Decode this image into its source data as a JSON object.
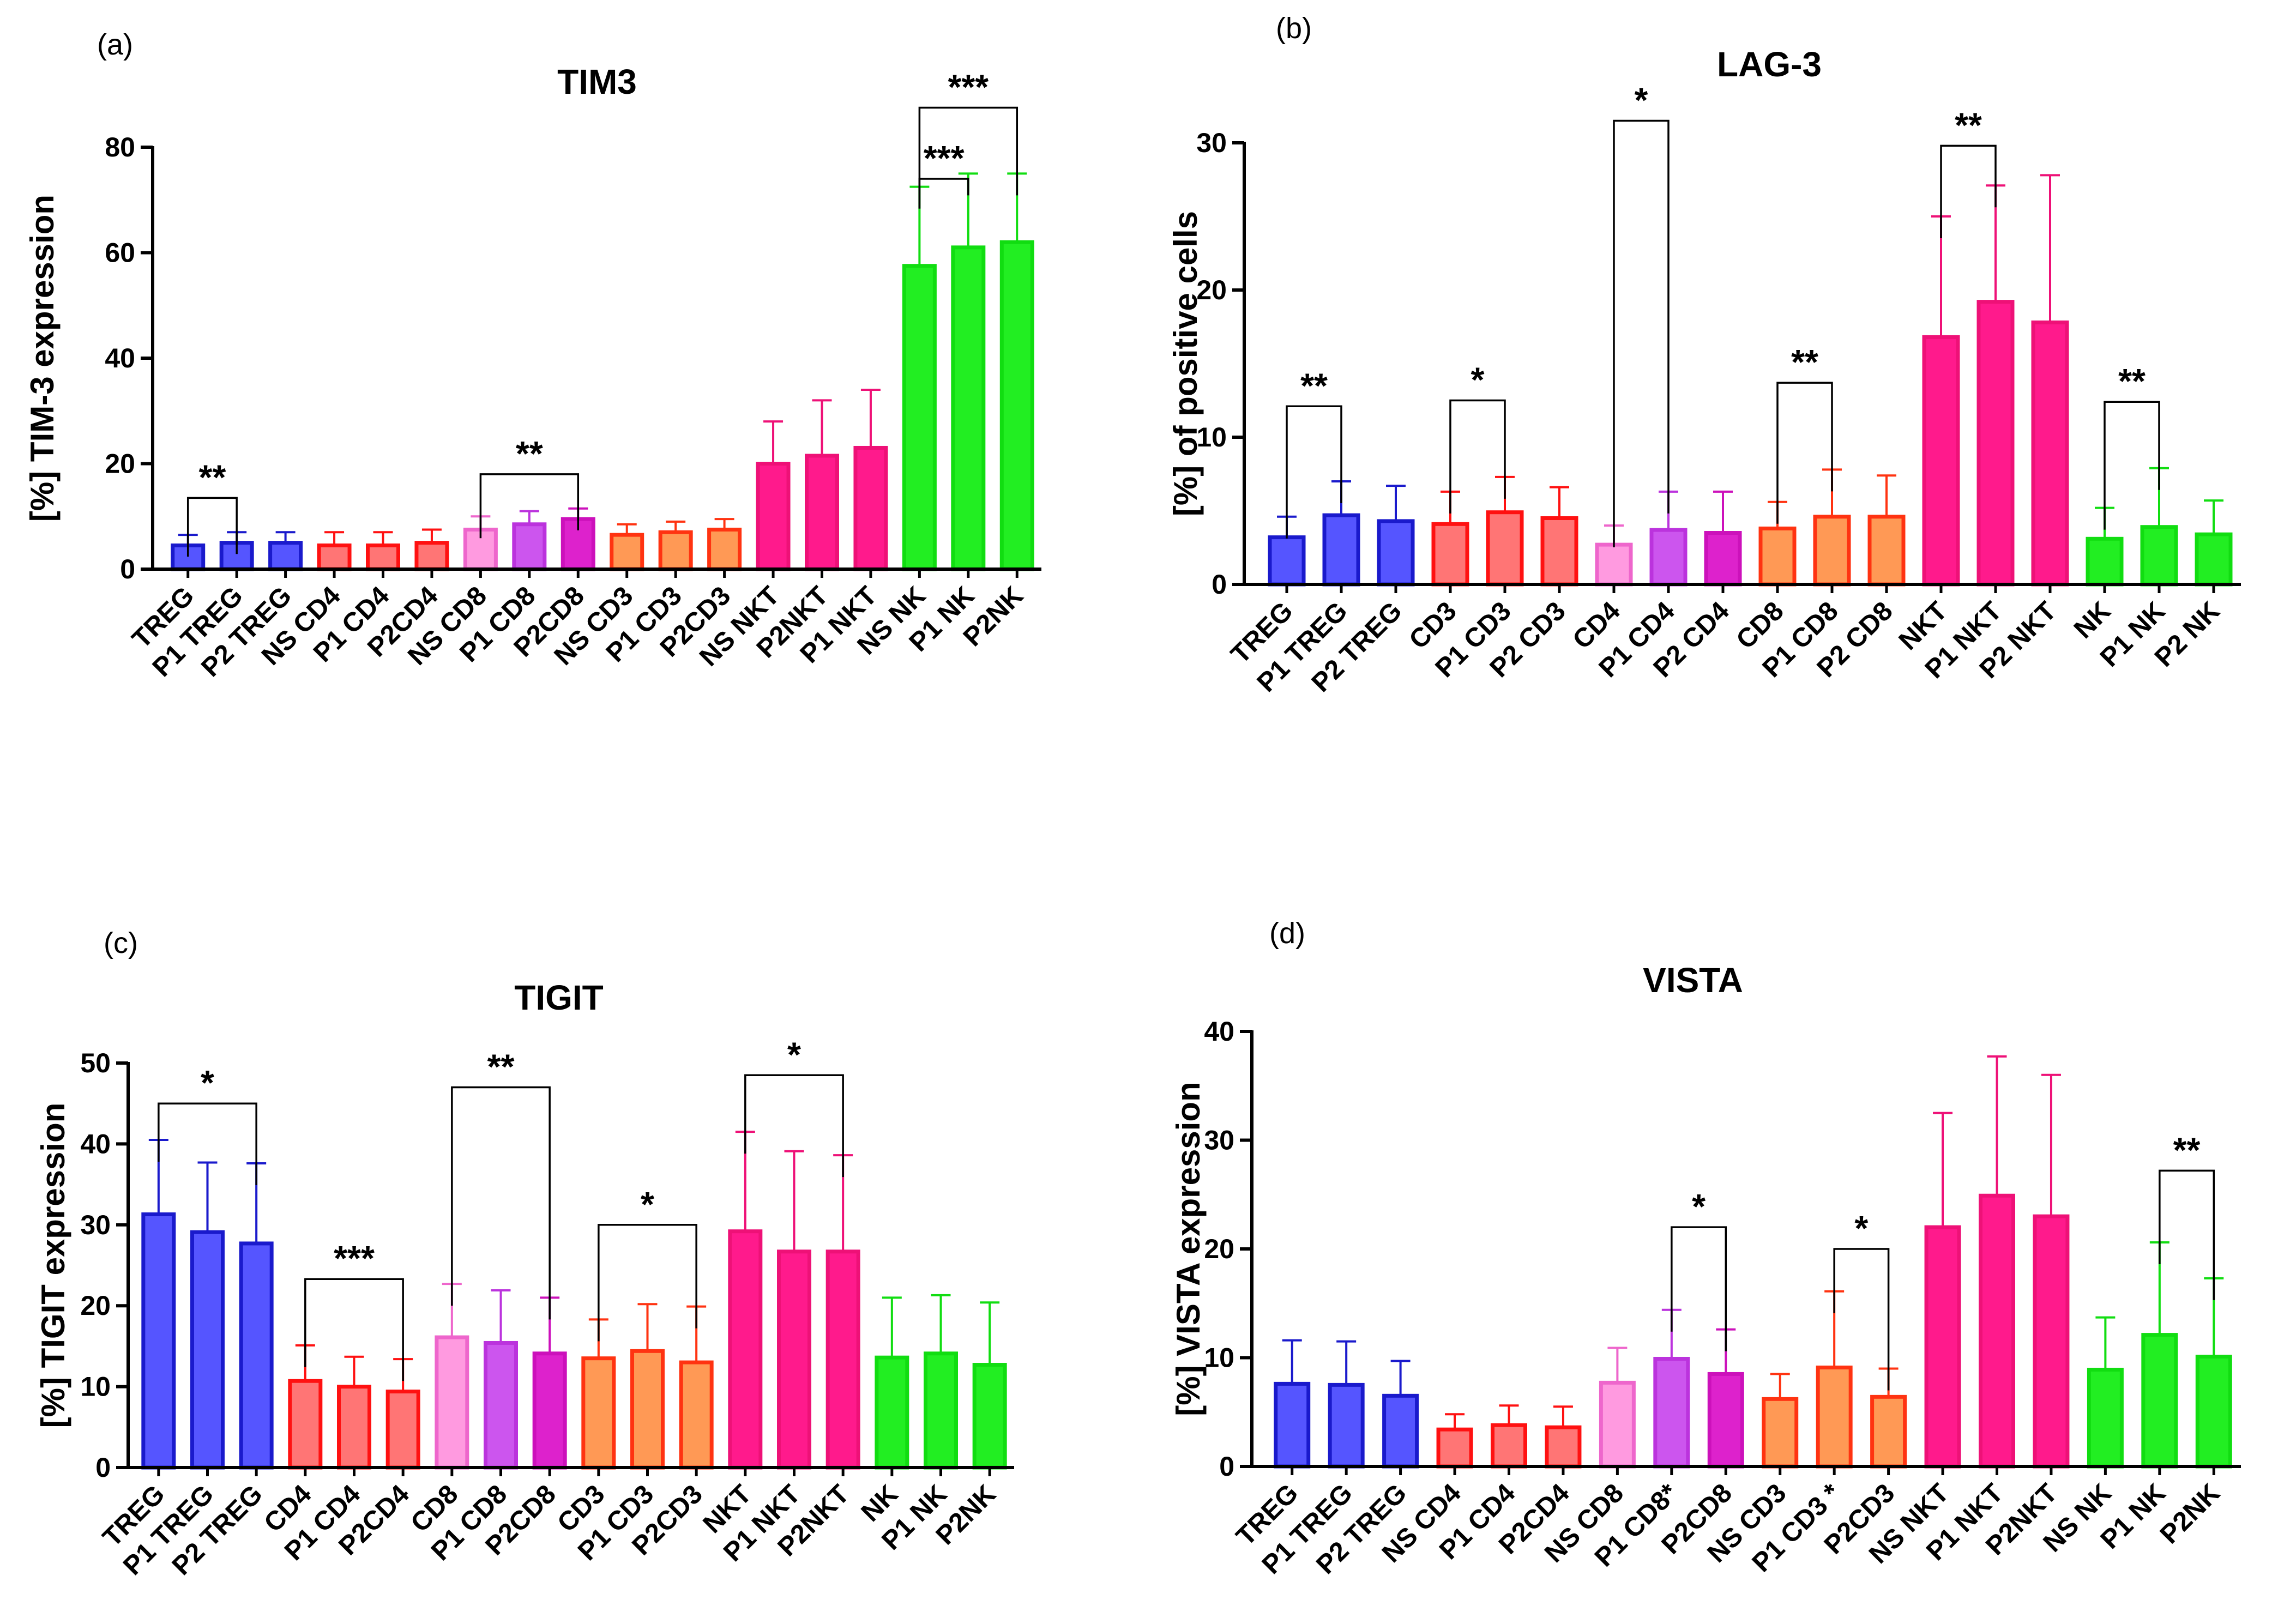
{
  "figure": {
    "panels": [
      {
        "id": "a",
        "label": "(a)"
      },
      {
        "id": "b",
        "label": "(b)"
      },
      {
        "id": "c",
        "label": "(c)"
      },
      {
        "id": "d",
        "label": "(d)"
      }
    ]
  },
  "colors": {
    "blue": "#5555ff",
    "blue_edge": "#1a1acc",
    "red": "#ff7575",
    "red_edge": "#ff1111",
    "pink_light": "#ff9ae0",
    "purple": "#cc55ee",
    "magenta": "#dd22cc",
    "orange": "#ff9955",
    "orange_edge": "#ff3311",
    "hotpink": "#ff1a8c",
    "green": "#22ee22"
  },
  "chart_data": [
    {
      "type": "bar",
      "title": "TIM3",
      "xlabel": "",
      "ylabel": "[%] TIM-3 expression",
      "ylim": [
        0,
        80
      ],
      "yticks": [
        0,
        20,
        40,
        60,
        80
      ],
      "categories": [
        "TREG",
        "P1 TREG",
        "P2 TREG",
        "NS CD4",
        "P1 CD4",
        "P2CD4",
        "NS CD8",
        "P1 CD8",
        "P2CD8",
        "NS CD3",
        "P1 CD3",
        "P2CD3",
        "NS NKT",
        "P2NKT",
        "P1 NKT",
        "NS NK",
        "P1 NK",
        "P2NK"
      ],
      "values": [
        4.5,
        5,
        5,
        4.5,
        4.5,
        5,
        7.5,
        8.5,
        9.5,
        6.5,
        7,
        7.5,
        20,
        21.5,
        23,
        57.5,
        61,
        62
      ],
      "errors": [
        2,
        2,
        2,
        2.5,
        2.5,
        2.5,
        2.5,
        2.5,
        2,
        2,
        2,
        2,
        8,
        10.5,
        11,
        15,
        14,
        13
      ],
      "colors": [
        "blue",
        "blue",
        "blue",
        "red",
        "red",
        "red",
        "pink_light",
        "purple",
        "magenta",
        "orange",
        "orange",
        "orange",
        "hotpink",
        "hotpink",
        "hotpink",
        "green",
        "green",
        "green"
      ],
      "significance": [
        {
          "from": 0,
          "to": 1,
          "y": 13.5,
          "label": "**"
        },
        {
          "from": 6,
          "to": 8,
          "y": 18,
          "label": "**"
        },
        {
          "from": 15,
          "to": 16,
          "y": 74,
          "label": "***"
        },
        {
          "from": 15,
          "to": 17,
          "y": 87.5,
          "label": "***"
        }
      ]
    },
    {
      "type": "bar",
      "title": "LAG-3",
      "xlabel": "",
      "ylabel": "[%] of positive cells",
      "ylim": [
        0,
        30
      ],
      "yticks": [
        0,
        10,
        20,
        30
      ],
      "categories": [
        "TREG",
        "P1 TREG",
        "P2 TREG",
        "CD3",
        "P1 CD3",
        "P2 CD3",
        "CD4",
        "P1 CD4",
        "P2 CD4",
        "CD8",
        "P1 CD8",
        "P2 CD8",
        "NKT",
        "P1 NKT",
        "P2 NKT",
        "NK",
        "P1 NK",
        "P2 NK"
      ],
      "values": [
        3.2,
        4.7,
        4.3,
        4.1,
        4.9,
        4.5,
        2.7,
        3.7,
        3.5,
        3.8,
        4.6,
        4.6,
        16.8,
        19.2,
        17.8,
        3.1,
        3.9,
        3.4
      ],
      "errors": [
        1.4,
        2.3,
        2.4,
        2.2,
        2.4,
        2.1,
        1.3,
        2.6,
        2.8,
        1.8,
        3.2,
        2.8,
        8.2,
        7.9,
        10,
        2.1,
        4,
        2.3
      ],
      "colors": [
        "blue",
        "blue",
        "blue",
        "red",
        "red",
        "red",
        "pink_light",
        "purple",
        "magenta",
        "orange",
        "orange",
        "orange",
        "hotpink",
        "hotpink",
        "hotpink",
        "green",
        "green",
        "green"
      ],
      "significance": [
        {
          "from": 0,
          "to": 1,
          "y": 12.1,
          "label": "**"
        },
        {
          "from": 3,
          "to": 4,
          "y": 12.5,
          "label": "*"
        },
        {
          "from": 6,
          "to": 7,
          "y": 31.5,
          "label": "*"
        },
        {
          "from": 9,
          "to": 10,
          "y": 13.7,
          "label": "**"
        },
        {
          "from": 12,
          "to": 13,
          "y": 29.8,
          "label": "**"
        },
        {
          "from": 15,
          "to": 16,
          "y": 12.4,
          "label": "**"
        }
      ]
    },
    {
      "type": "bar",
      "title": "TIGIT",
      "xlabel": "",
      "ylabel": "[%] TIGIT expression",
      "ylim": [
        0,
        50
      ],
      "yticks": [
        0,
        10,
        20,
        30,
        40,
        50
      ],
      "categories": [
        "TREG",
        "P1 TREG",
        "P2 TREG",
        "CD4",
        "P1 CD4",
        "P2CD4",
        "CD8",
        "P1 CD8",
        "P2CD8",
        "CD3",
        "P1 CD3",
        "P2CD3",
        "NKT",
        "P1 NKT",
        "P2NKT",
        "NK",
        "P1 NK",
        "P2NK"
      ],
      "values": [
        31.3,
        29.1,
        27.7,
        10.7,
        10,
        9.4,
        16.1,
        15.4,
        14.1,
        13.5,
        14.4,
        13,
        29.2,
        26.7,
        26.7,
        13.6,
        14.1,
        12.7
      ],
      "errors": [
        9.2,
        8.6,
        9.9,
        4.4,
        3.7,
        4,
        6.6,
        6.5,
        6.9,
        4.8,
        5.8,
        6.9,
        12.3,
        12.4,
        11.9,
        7.4,
        7.2,
        7.7
      ],
      "colors": [
        "blue",
        "blue",
        "blue",
        "red",
        "red",
        "red",
        "pink_light",
        "purple",
        "magenta",
        "orange",
        "orange",
        "orange",
        "hotpink",
        "hotpink",
        "hotpink",
        "green",
        "green",
        "green"
      ],
      "significance": [
        {
          "from": 0,
          "to": 2,
          "y": 45,
          "label": "*"
        },
        {
          "from": 3,
          "to": 5,
          "y": 23.3,
          "label": "***"
        },
        {
          "from": 6,
          "to": 8,
          "y": 47,
          "label": "**"
        },
        {
          "from": 9,
          "to": 11,
          "y": 30,
          "label": "*"
        },
        {
          "from": 12,
          "to": 14,
          "y": 48.5,
          "label": "*"
        }
      ]
    },
    {
      "type": "bar",
      "title": "VISTA",
      "xlabel": "",
      "ylabel": "[%] VISTA expression",
      "ylim": [
        0,
        40
      ],
      "yticks": [
        0,
        10,
        20,
        30,
        40
      ],
      "categories": [
        "TREG",
        "P1 TREG",
        "P2 TREG",
        "NS CD4",
        "P1 CD4",
        "P2CD4",
        "NS CD8",
        "P1 CD8*",
        "P2CD8",
        "NS CD3",
        "P1 CD3 *",
        "P2CD3",
        "NS NKT",
        "P1 NKT",
        "P2NKT",
        "NS NK",
        "P1 NK",
        "P2NK"
      ],
      "values": [
        7.6,
        7.5,
        6.5,
        3.4,
        3.8,
        3.6,
        7.7,
        9.9,
        8.5,
        6.2,
        9.1,
        6.4,
        22,
        24.9,
        23,
        8.9,
        12.1,
        10.1
      ],
      "errors": [
        4,
        4,
        3.2,
        1.4,
        1.8,
        1.9,
        3.2,
        4.5,
        4.1,
        2.3,
        7,
        2.6,
        10.5,
        12.8,
        13,
        4.8,
        8.5,
        7.2
      ],
      "colors": [
        "blue",
        "blue",
        "blue",
        "red",
        "red",
        "red",
        "pink_light",
        "purple",
        "magenta",
        "orange",
        "orange",
        "orange",
        "hotpink",
        "hotpink",
        "hotpink",
        "green",
        "green",
        "green"
      ],
      "significance": [
        {
          "from": 7,
          "to": 8,
          "y": 22,
          "label": "*"
        },
        {
          "from": 10,
          "to": 11,
          "y": 20,
          "label": "*"
        },
        {
          "from": 16,
          "to": 17,
          "y": 27.2,
          "label": "**"
        }
      ]
    }
  ]
}
